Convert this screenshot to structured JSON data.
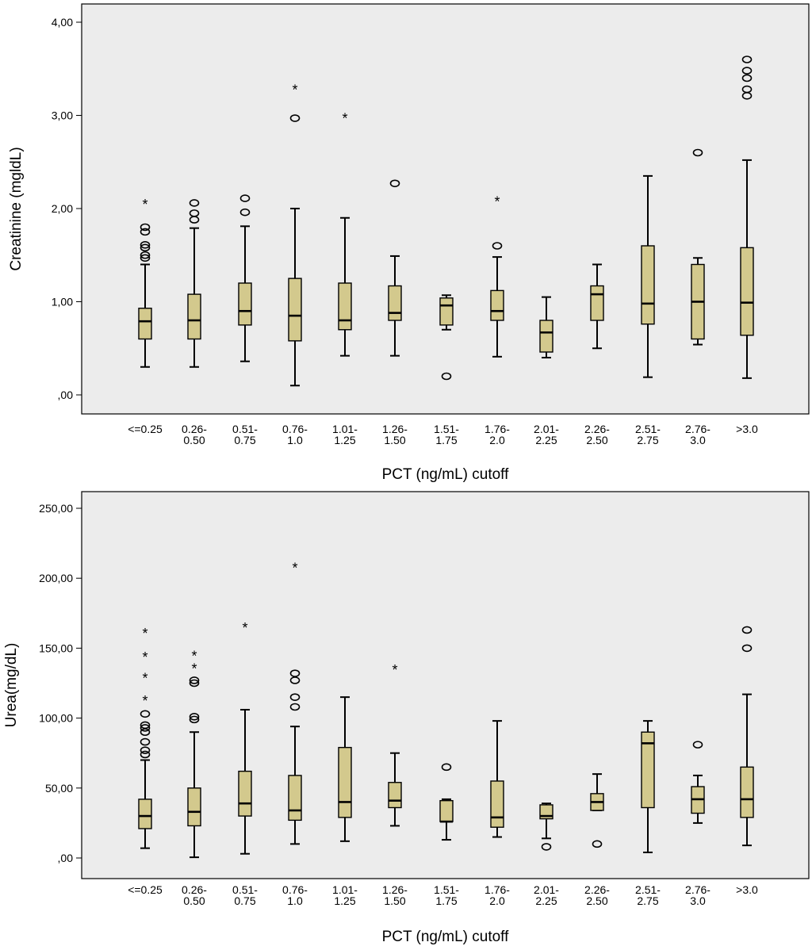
{
  "chart_data": [
    {
      "type": "box",
      "xlabel": "PCT (ng/mL) cutoff",
      "ylabel": "Creatinine (mgldL)",
      "ylim": [
        0,
        4
      ],
      "yticks": [
        0,
        1,
        2,
        3,
        4
      ],
      "yticklabels": [
        ",00",
        "1,00",
        "2,00",
        "3,00",
        "4,00"
      ],
      "grid": false,
      "background": "#ececec",
      "box_color": "#d3c98d",
      "categories": [
        [
          "<=0.25"
        ],
        [
          "0.26-",
          "0.50"
        ],
        [
          "0.51-",
          "0.75"
        ],
        [
          "0.76-",
          "1.0"
        ],
        [
          "1.01-",
          "1.25"
        ],
        [
          "1.26-",
          "1.50"
        ],
        [
          "1.51-",
          "1.75"
        ],
        [
          "1.76-",
          "2.0"
        ],
        [
          "2.01-",
          "2.25"
        ],
        [
          "2.26-",
          "2.50"
        ],
        [
          "2.51-",
          "2.75"
        ],
        [
          "2.76-",
          "3.0"
        ],
        [
          ">3.0"
        ]
      ],
      "boxes": [
        {
          "min": 0.3,
          "q1": 0.6,
          "median": 0.79,
          "q3": 0.93,
          "max": 1.4,
          "outliers": [
            1.47,
            1.5,
            1.58,
            1.61,
            1.75,
            1.8
          ],
          "extremes": [
            2.07
          ]
        },
        {
          "min": 0.3,
          "q1": 0.6,
          "median": 0.8,
          "q3": 1.08,
          "max": 1.79,
          "outliers": [
            1.88,
            1.95,
            2.06
          ],
          "extremes": []
        },
        {
          "min": 0.36,
          "q1": 0.75,
          "median": 0.9,
          "q3": 1.2,
          "max": 1.81,
          "outliers": [
            1.96,
            2.11
          ],
          "extremes": []
        },
        {
          "min": 0.1,
          "q1": 0.58,
          "median": 0.85,
          "q3": 1.25,
          "max": 2.0,
          "outliers": [
            2.97
          ],
          "extremes": [
            3.3
          ]
        },
        {
          "min": 0.42,
          "q1": 0.7,
          "median": 0.8,
          "q3": 1.2,
          "max": 1.9,
          "outliers": [],
          "extremes": [
            2.99
          ]
        },
        {
          "min": 0.42,
          "q1": 0.8,
          "median": 0.88,
          "q3": 1.17,
          "max": 1.49,
          "outliers": [
            2.27
          ],
          "extremes": []
        },
        {
          "min": 0.7,
          "q1": 0.75,
          "median": 0.96,
          "q3": 1.04,
          "max": 1.07,
          "outliers": [
            0.2
          ],
          "extremes": []
        },
        {
          "min": 0.41,
          "q1": 0.8,
          "median": 0.9,
          "q3": 1.12,
          "max": 1.48,
          "outliers": [
            1.6
          ],
          "extremes": [
            2.1
          ]
        },
        {
          "min": 0.4,
          "q1": 0.46,
          "median": 0.67,
          "q3": 0.8,
          "max": 1.05,
          "outliers": [],
          "extremes": []
        },
        {
          "min": 0.5,
          "q1": 0.8,
          "median": 1.08,
          "q3": 1.17,
          "max": 1.4,
          "outliers": [],
          "extremes": []
        },
        {
          "min": 0.19,
          "q1": 0.76,
          "median": 0.98,
          "q3": 1.6,
          "max": 2.35,
          "outliers": [],
          "extremes": []
        },
        {
          "min": 0.54,
          "q1": 0.6,
          "median": 1.0,
          "q3": 1.4,
          "max": 1.47,
          "outliers": [
            2.6
          ],
          "extremes": []
        },
        {
          "min": 0.18,
          "q1": 0.64,
          "median": 0.99,
          "q3": 1.58,
          "max": 2.52,
          "outliers": [
            3.21,
            3.28,
            3.4,
            3.48,
            3.6
          ],
          "extremes": []
        }
      ]
    },
    {
      "type": "box",
      "xlabel": "PCT (ng/mL) cutoff",
      "ylabel": "Urea(mg/dL)",
      "ylim": [
        0,
        250
      ],
      "yticks": [
        0,
        50,
        100,
        150,
        200,
        250
      ],
      "yticklabels": [
        ",00",
        "50,00",
        "100,00",
        "150,00",
        "200,00",
        "250,00"
      ],
      "grid": false,
      "background": "#ececec",
      "box_color": "#d3c98d",
      "categories": [
        [
          "<=0.25"
        ],
        [
          "0.26-",
          "0.50"
        ],
        [
          "0.51-",
          "0.75"
        ],
        [
          "0.76-",
          "1.0"
        ],
        [
          "1.01-",
          "1.25"
        ],
        [
          "1.26-",
          "1.50"
        ],
        [
          "1.51-",
          "1.75"
        ],
        [
          "1.76-",
          "2.0"
        ],
        [
          "2.01-",
          "2.25"
        ],
        [
          "2.26-",
          "2.50"
        ],
        [
          "2.51-",
          "2.75"
        ],
        [
          "2.76-",
          "3.0"
        ],
        [
          ">3.0"
        ]
      ],
      "boxes": [
        {
          "min": 7,
          "q1": 21,
          "median": 30,
          "q3": 42,
          "max": 70,
          "outliers": [
            74,
            77,
            83,
            90,
            93,
            95,
            103
          ],
          "extremes": [
            114,
            130,
            145,
            162
          ]
        },
        {
          "min": 0.5,
          "q1": 23,
          "median": 33,
          "q3": 50,
          "max": 90,
          "outliers": [
            99,
            101,
            125,
            127
          ],
          "extremes": [
            137,
            146
          ]
        },
        {
          "min": 3,
          "q1": 30,
          "median": 39,
          "q3": 62,
          "max": 106,
          "outliers": [],
          "extremes": [
            166
          ]
        },
        {
          "min": 10,
          "q1": 27,
          "median": 34,
          "q3": 59,
          "max": 94,
          "outliers": [
            108,
            115,
            127,
            132
          ],
          "extremes": [
            209
          ]
        },
        {
          "min": 12,
          "q1": 29,
          "median": 40,
          "q3": 79,
          "max": 115,
          "outliers": [],
          "extremes": []
        },
        {
          "min": 23,
          "q1": 36,
          "median": 41,
          "q3": 54,
          "max": 75,
          "outliers": [],
          "extremes": [
            136
          ]
        },
        {
          "min": 13,
          "q1": 26,
          "median": 26,
          "q3": 41,
          "max": 42,
          "outliers": [
            65
          ],
          "extremes": []
        },
        {
          "min": 15,
          "q1": 22,
          "median": 29,
          "q3": 55,
          "max": 98,
          "outliers": [],
          "extremes": []
        },
        {
          "min": 14,
          "q1": 28,
          "median": 30,
          "q3": 38,
          "max": 39,
          "outliers": [
            8
          ],
          "extremes": []
        },
        {
          "min": 34,
          "q1": 34,
          "median": 40,
          "q3": 46,
          "max": 60,
          "outliers": [
            10
          ],
          "extremes": []
        },
        {
          "min": 4,
          "q1": 36,
          "median": 82,
          "q3": 90,
          "max": 98,
          "outliers": [],
          "extremes": []
        },
        {
          "min": 25,
          "q1": 32,
          "median": 42,
          "q3": 51,
          "max": 59,
          "outliers": [
            81
          ],
          "extremes": []
        },
        {
          "min": 9,
          "q1": 29,
          "median": 42,
          "q3": 65,
          "max": 117,
          "outliers": [
            150,
            163
          ],
          "extremes": []
        }
      ]
    }
  ]
}
